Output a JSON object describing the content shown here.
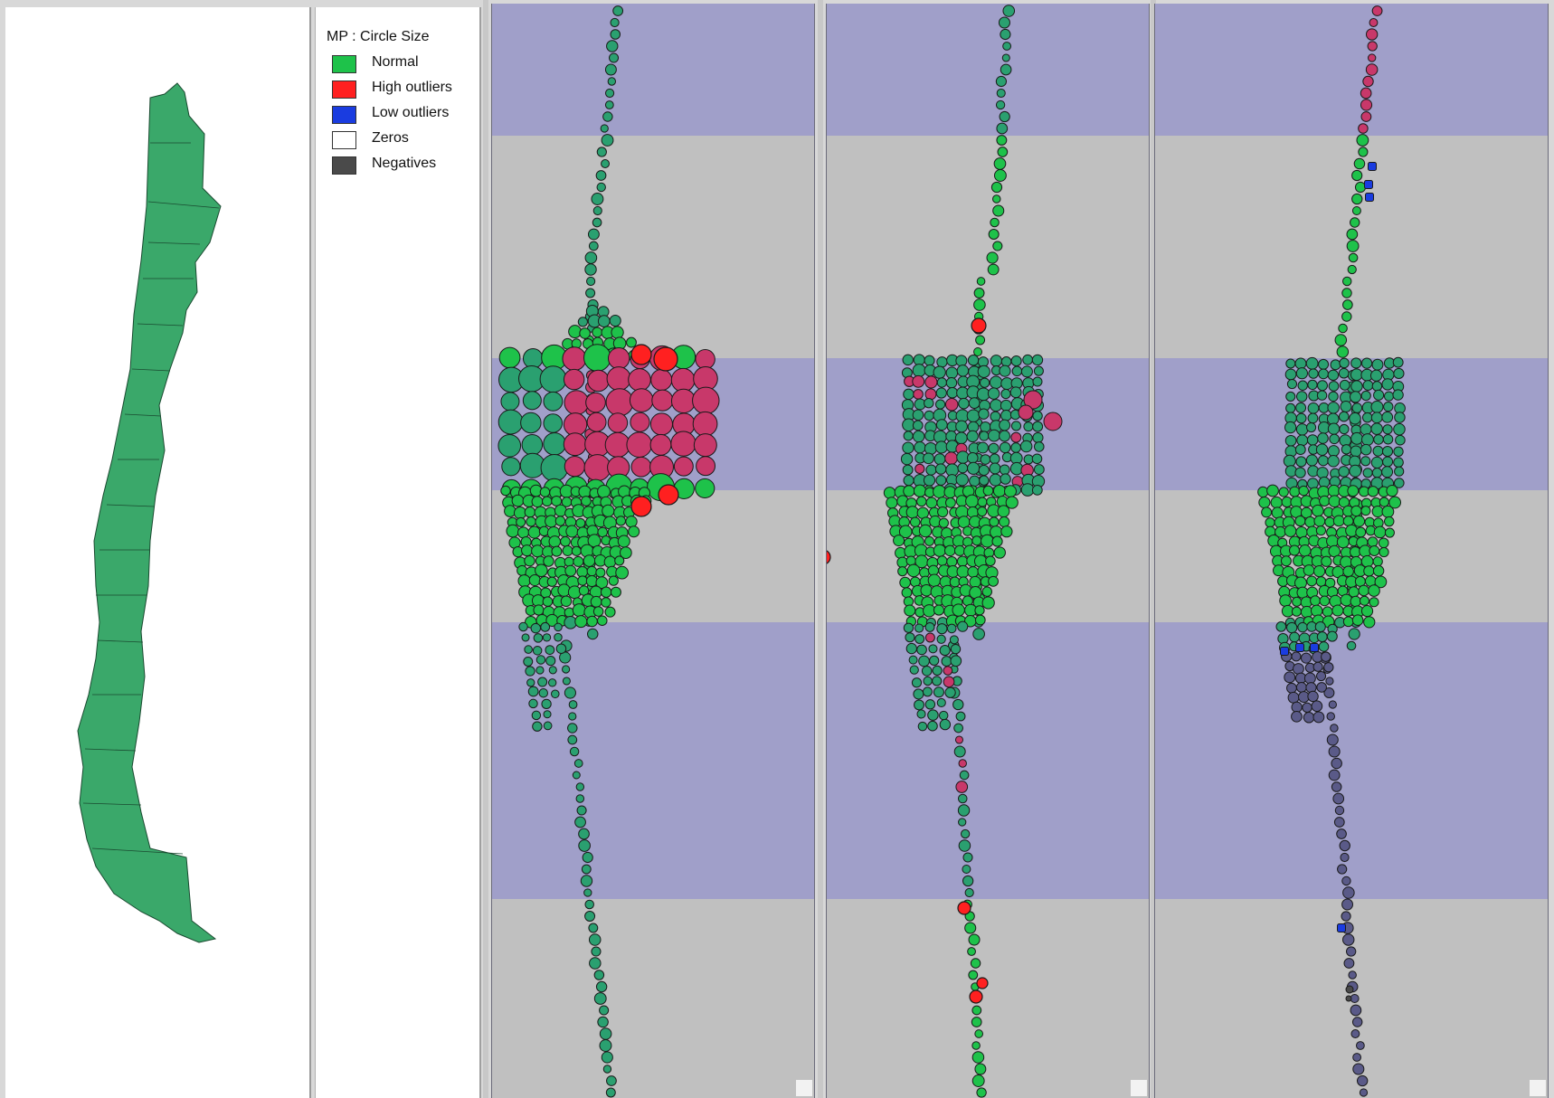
{
  "legend": {
    "title": "MP : Circle Size",
    "items": [
      {
        "label": "Normal",
        "color": "#1ec24a"
      },
      {
        "label": "High outliers",
        "color": "#ff2020"
      },
      {
        "label": "Low outliers",
        "color": "#1a3ce0"
      },
      {
        "label": "Zeros",
        "color": "#ffffff"
      },
      {
        "label": "Negatives",
        "color": "#4a4a4a"
      }
    ]
  },
  "colors": {
    "band": "#a09fc9",
    "gray_band": "#c0c0c0",
    "teal_circle": "#2aa070",
    "magenta_circle": "#c8386a",
    "navy_circle": "#5a5a88",
    "map_fill": "#3aa86a"
  },
  "icons": [
    "splitter-handle-icon",
    "resize-grip-icon"
  ]
}
